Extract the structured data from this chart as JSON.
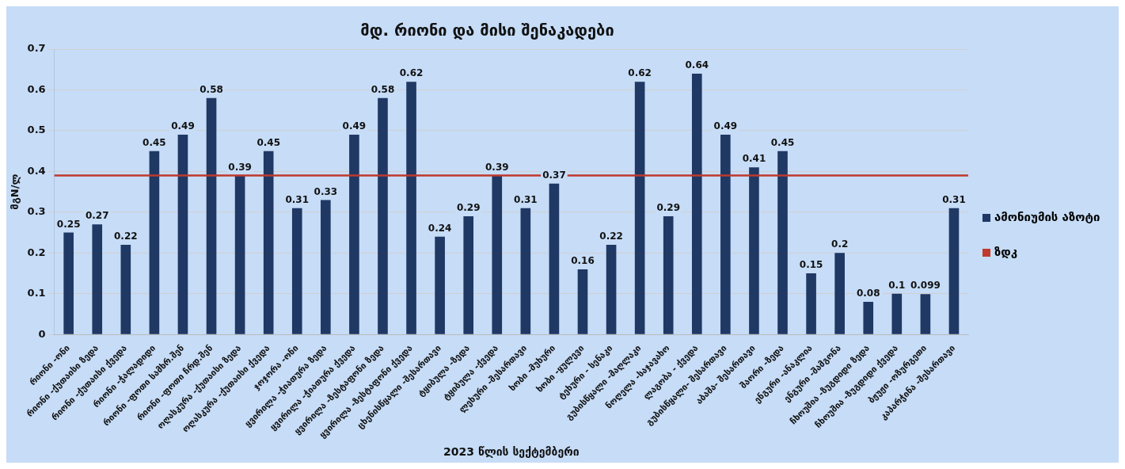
{
  "chart_data": {
    "type": "bar",
    "title": "მდ. რიონი და მისი შენაკადები",
    "xlabel": "2023 წლის სექტემბერი",
    "ylabel": "მგN/ლ",
    "categories": [
      "რიონი -ონი",
      "რიონი -ქუთაისი ზედა",
      "რიონი -ქუთაისი ქვედა",
      "რიონი -ჭალადიდი",
      "რიონი -ფოთი სამხრ.შენ",
      "რიონი -ფოთი ჩრდ.შენ",
      "ოღასკურა -ქუთაისი ზედა",
      "ოღასკურა -ქუთაისი ქვედა",
      "ჯოჯორა -ონი",
      "ყვირილა -ჭიათურა ზედა",
      "ყვირილა -ჭიათურა ქვედა",
      "ყვირილა -ზესტაფონი ზედა",
      "ყვირილა -ზესტაფონი ქვედა",
      "ცხენისწყალი -შესართავი",
      "ტყიბულა -ზედა",
      "ტყიბულა -ქვედა",
      "ლეხური -შესართავი",
      "ხობი -მუხური",
      "ხობი -ყულევი",
      "ტეხური - სენაკი",
      "გუბისწყალი -მაღლაკი",
      "ნოღელა -საჯავახო",
      "ლაგობა - ქვედა",
      "გუბისწყალი- შესართავი",
      "აბაშა- შესართავი",
      "შაორი -ზედა",
      "ენგური -ანაკლია",
      "ენგური -შამგონა",
      "ჩხოუშია -ზუგდიდი ზედა",
      "ჩხოუშია -ზუგდიდი ქვედა",
      "ბჟუჟი -ოზურგეთი",
      "კაპარჭინა -შესართავი"
    ],
    "series": [
      {
        "name": "ამონიუმის აზოტი",
        "color": "#1f3864",
        "values": [
          0.25,
          0.27,
          0.22,
          0.45,
          0.49,
          0.58,
          0.39,
          0.45,
          0.31,
          0.33,
          0.49,
          0.58,
          0.62,
          0.24,
          0.29,
          0.39,
          0.31,
          0.37,
          0.16,
          0.22,
          0.62,
          0.29,
          0.64,
          0.49,
          0.41,
          0.45,
          0.15,
          0.2,
          0.08,
          0.1,
          0.099,
          0.31
        ]
      }
    ],
    "ylim": [
      0,
      0.7
    ],
    "yticks": [
      0,
      0.1,
      0.2,
      0.3,
      0.4,
      0.5,
      0.6,
      0.7
    ],
    "grid": "y",
    "data_labels": true,
    "legend": "right",
    "ref_lines": [
      {
        "axis": "y",
        "value": 0.39,
        "label": "ზდკ",
        "color": "#c0392b"
      }
    ]
  }
}
